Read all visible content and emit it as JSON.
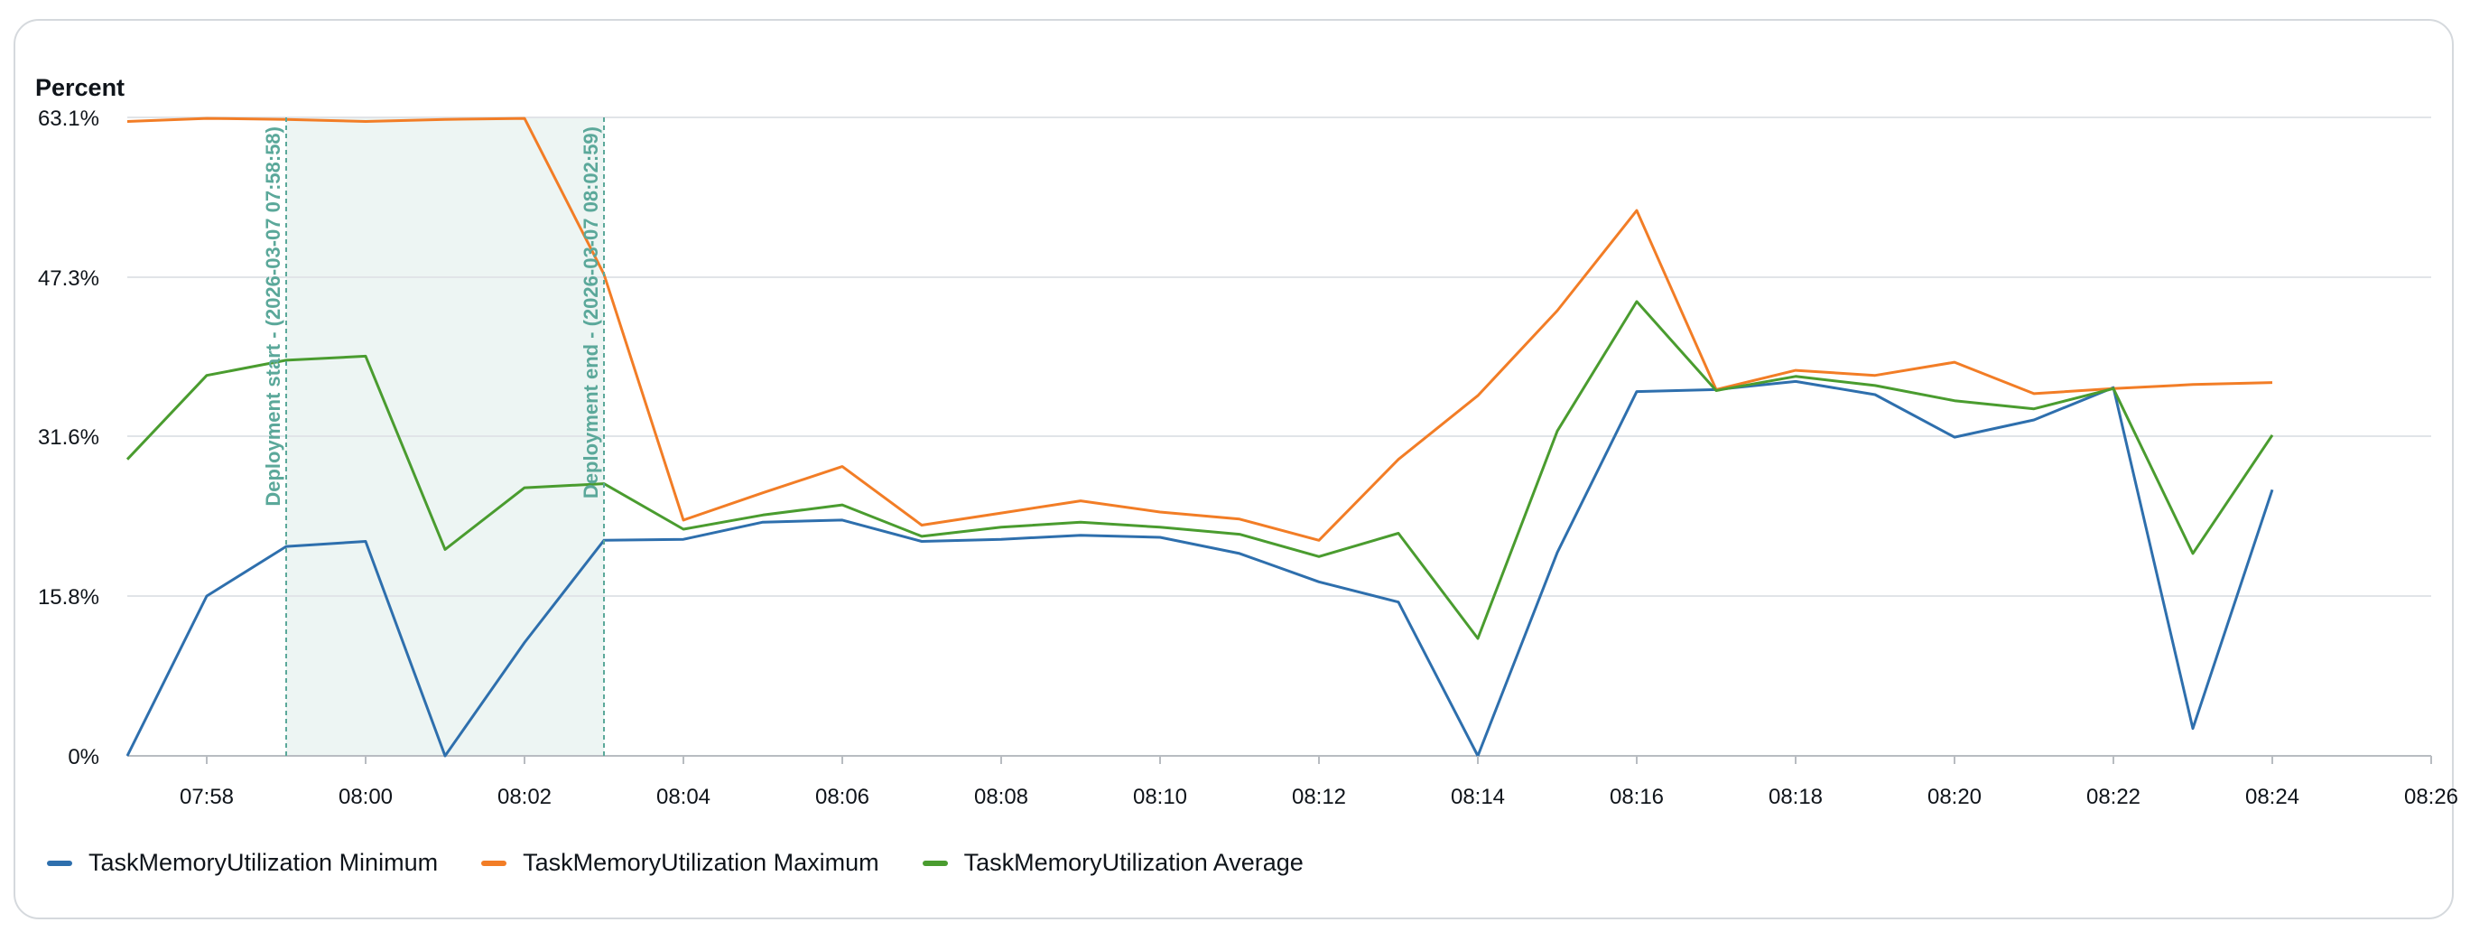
{
  "chart_data": {
    "type": "line",
    "ylabel": "Percent",
    "ylim": [
      0,
      63.1
    ],
    "y_ticks": [
      "0%",
      "15.8%",
      "31.6%",
      "47.3%",
      "63.1%"
    ],
    "y_tick_values": [
      0,
      15.8,
      31.6,
      47.3,
      63.1
    ],
    "x_ticks": [
      "07:58",
      "08:00",
      "08:02",
      "08:04",
      "08:06",
      "08:08",
      "08:10",
      "08:12",
      "08:14",
      "08:16",
      "08:18",
      "08:20",
      "08:22",
      "08:24",
      "08:26"
    ],
    "x_tick_minutes": [
      478,
      480,
      482,
      484,
      486,
      488,
      490,
      492,
      494,
      496,
      498,
      500,
      502,
      504,
      506
    ],
    "x_range_minutes": [
      477,
      506
    ],
    "grid": true,
    "legend_position": "bottom-left",
    "x": [
      "07:57",
      "07:58",
      "07:59",
      "08:00",
      "08:01",
      "08:02",
      "08:03",
      "08:04",
      "08:05",
      "08:06",
      "08:07",
      "08:08",
      "08:09",
      "08:10",
      "08:11",
      "08:12",
      "08:13",
      "08:14",
      "08:15",
      "08:16",
      "08:17",
      "08:18",
      "08:19",
      "08:20",
      "08:21",
      "08:22",
      "08:23",
      "08:24"
    ],
    "x_minutes": [
      477,
      478,
      479,
      480,
      481,
      482,
      483,
      484,
      485,
      486,
      487,
      488,
      489,
      490,
      491,
      492,
      493,
      494,
      495,
      496,
      497,
      498,
      499,
      500,
      501,
      502,
      503,
      504
    ],
    "series": [
      {
        "name": "TaskMemoryUtilization Minimum",
        "color": "#2e6fad",
        "values": [
          0,
          15.8,
          20.7,
          21.2,
          0,
          11.2,
          21.3,
          21.4,
          23.1,
          23.3,
          21.2,
          21.4,
          21.8,
          21.6,
          20.0,
          17.2,
          15.2,
          0,
          20.1,
          36.0,
          36.2,
          37.0,
          35.7,
          31.5,
          33.2,
          36.4,
          2.7,
          26.3
        ]
      },
      {
        "name": "TaskMemoryUtilization Maximum",
        "color": "#f27d26",
        "values": [
          62.7,
          63.0,
          62.9,
          62.7,
          62.9,
          63.0,
          47.6,
          23.3,
          26.0,
          28.6,
          22.8,
          24.0,
          25.2,
          24.1,
          23.4,
          21.3,
          29.3,
          35.6,
          44.0,
          53.9,
          36.2,
          38.1,
          37.6,
          38.9,
          35.8,
          36.3,
          36.7,
          36.9
        ]
      },
      {
        "name": "TaskMemoryUtilization Average",
        "color": "#4a9c2f",
        "values": [
          29.3,
          37.6,
          39.1,
          39.5,
          20.4,
          26.5,
          26.9,
          22.4,
          23.8,
          24.8,
          21.7,
          22.6,
          23.1,
          22.6,
          21.9,
          19.7,
          22.0,
          11.6,
          32.1,
          44.9,
          36.1,
          37.5,
          36.6,
          35.1,
          34.3,
          36.3,
          20.0,
          31.7
        ]
      }
    ],
    "annotations": [
      {
        "label": "Deployment start - (2026-03-07 07:58:58)",
        "x_minutes": 479
      },
      {
        "label": "Deployment end - (2026-03-07 08:02:59)",
        "x_minutes": 483
      }
    ],
    "shaded_region": {
      "start_minutes": 479,
      "end_minutes": 483,
      "color": "#edf5f3",
      "line_color": "#5ba89a"
    }
  }
}
